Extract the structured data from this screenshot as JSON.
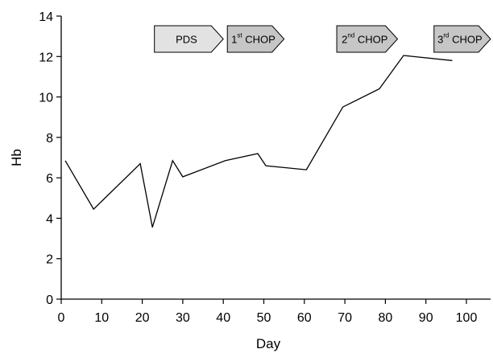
{
  "chart_data": {
    "type": "line",
    "title": "",
    "xlabel": "Day",
    "ylabel": "Hb",
    "xlim": [
      0,
      100
    ],
    "ylim": [
      0,
      14
    ],
    "xticks": [
      0,
      10,
      20,
      30,
      40,
      50,
      60,
      70,
      80,
      90,
      100
    ],
    "yticks": [
      0,
      2,
      4,
      6,
      8,
      10,
      12,
      14
    ],
    "grid": false,
    "series": [
      {
        "x": [
          1,
          8,
          19.5,
          22.5,
          27.5,
          30,
          40.5,
          48.5,
          50.5,
          60.5,
          69.5,
          78.5,
          84.5,
          96.5
        ],
        "y": [
          6.85,
          4.45,
          6.7,
          3.55,
          6.85,
          6.05,
          6.85,
          7.2,
          6.6,
          6.4,
          9.5,
          10.4,
          12.05,
          11.8
        ]
      }
    ],
    "annotations": [
      {
        "main": "PDS",
        "sup": "",
        "rest": "",
        "start": 23,
        "end": 40,
        "fill": "#e2e2e2"
      },
      {
        "main": "1",
        "sup": "st",
        "rest": " CHOP",
        "start": 41,
        "end": 55,
        "fill": "#c6c6c6"
      },
      {
        "main": "2",
        "sup": "nd",
        "rest": " CHOP",
        "start": 68,
        "end": 83,
        "fill": "#c6c6c6"
      },
      {
        "main": "3",
        "sup": "rd",
        "rest": " CHOP",
        "start": 92,
        "end": 107,
        "fill": "#c6c6c6"
      }
    ]
  }
}
